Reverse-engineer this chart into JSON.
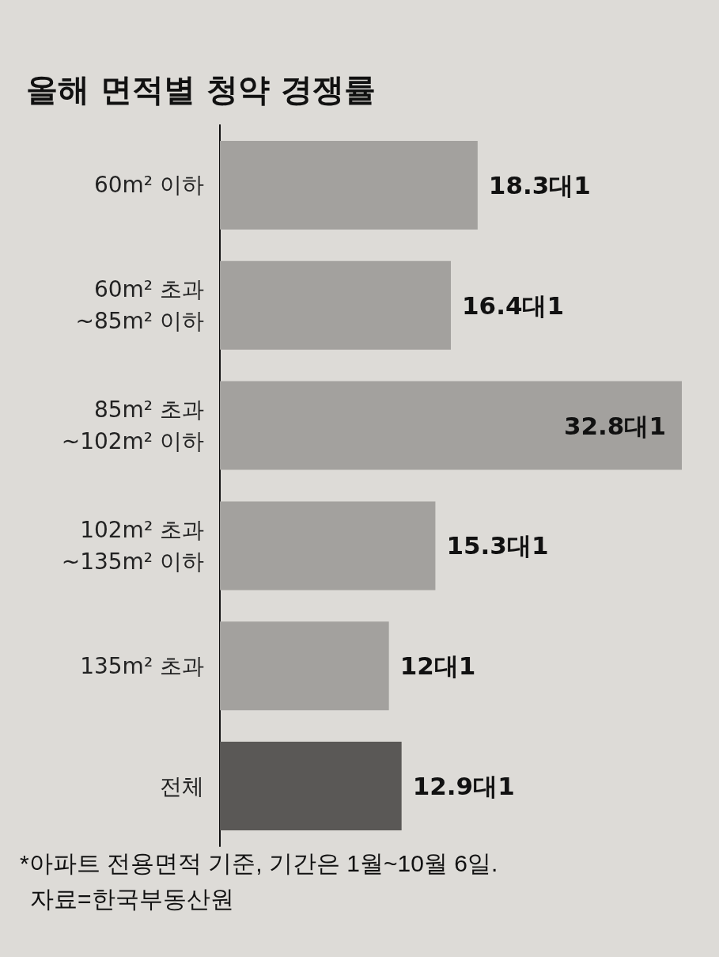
{
  "chart_data": {
    "type": "bar",
    "orientation": "horizontal",
    "title": "올해 면적별 청약 경쟁률",
    "categories": [
      "60m² 이하",
      "60m² 초과\n~85m² 이하",
      "85m² 초과\n~102m² 이하",
      "102m² 초과\n~135m² 이하",
      "135m² 초과",
      "전체"
    ],
    "values": [
      18.3,
      16.4,
      32.8,
      15.3,
      12,
      12.9
    ],
    "value_labels": [
      "18.3대1",
      "16.4대1",
      "32.8대1",
      "15.3대1",
      "12대1",
      "12.9대1"
    ],
    "colors": [
      "#a3a19e",
      "#a3a19e",
      "#a3a19e",
      "#a3a19e",
      "#a3a19e",
      "#5a5856"
    ],
    "annotations": [
      "*아파트 전용면적 기준, 기간은 1월~10월 6일.",
      "자료=한국부동산원"
    ]
  }
}
